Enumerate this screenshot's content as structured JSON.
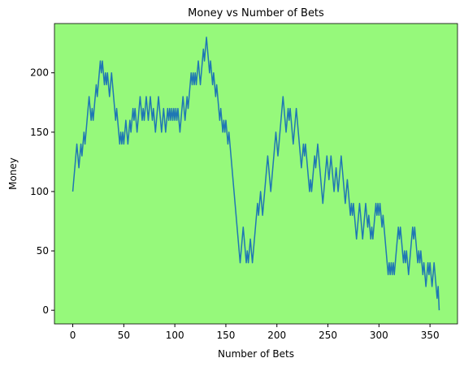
{
  "chart_data": {
    "type": "line",
    "title": "Money vs Number of Bets",
    "xlabel": "Number of Bets",
    "ylabel": "Money",
    "plot_background": "#96f97b",
    "xlim": [
      -17.95,
      376.95
    ],
    "xticks": [
      0,
      50,
      100,
      150,
      200,
      250,
      300,
      350
    ],
    "ylim": [
      -11.5,
      241.5
    ],
    "yticks": [
      0,
      50,
      100,
      150,
      200
    ],
    "x": [
      0,
      1,
      2,
      3,
      4,
      5,
      6,
      7,
      8,
      9,
      10,
      11,
      12,
      13,
      14,
      15,
      16,
      17,
      18,
      19,
      20,
      21,
      22,
      23,
      24,
      25,
      26,
      27,
      28,
      29,
      30,
      31,
      32,
      33,
      34,
      35,
      36,
      37,
      38,
      39,
      40,
      41,
      42,
      43,
      44,
      45,
      46,
      47,
      48,
      49,
      50,
      51,
      52,
      53,
      54,
      55,
      56,
      57,
      58,
      59,
      60,
      61,
      62,
      63,
      64,
      65,
      66,
      67,
      68,
      69,
      70,
      71,
      72,
      73,
      74,
      75,
      76,
      77,
      78,
      79,
      80,
      81,
      82,
      83,
      84,
      85,
      86,
      87,
      88,
      89,
      90,
      91,
      92,
      93,
      94,
      95,
      96,
      97,
      98,
      99,
      100,
      101,
      102,
      103,
      104,
      105,
      106,
      107,
      108,
      109,
      110,
      111,
      112,
      113,
      114,
      115,
      116,
      117,
      118,
      119,
      120,
      121,
      122,
      123,
      124,
      125,
      126,
      127,
      128,
      129,
      130,
      131,
      132,
      133,
      134,
      135,
      136,
      137,
      138,
      139,
      140,
      141,
      142,
      143,
      144,
      145,
      146,
      147,
      148,
      149,
      150,
      151,
      152,
      153,
      154,
      155,
      156,
      157,
      158,
      159,
      160,
      161,
      162,
      163,
      164,
      165,
      166,
      167,
      168,
      169,
      170,
      171,
      172,
      173,
      174,
      175,
      176,
      177,
      178,
      179,
      180,
      181,
      182,
      183,
      184,
      185,
      186,
      187,
      188,
      189,
      190,
      191,
      192,
      193,
      194,
      195,
      196,
      197,
      198,
      199,
      200,
      201,
      202,
      203,
      204,
      205,
      206,
      207,
      208,
      209,
      210,
      211,
      212,
      213,
      214,
      215,
      216,
      217,
      218,
      219,
      220,
      221,
      222,
      223,
      224,
      225,
      226,
      227,
      228,
      229,
      230,
      231,
      232,
      233,
      234,
      235,
      236,
      237,
      238,
      239,
      240,
      241,
      242,
      243,
      244,
      245,
      246,
      247,
      248,
      249,
      250,
      251,
      252,
      253,
      254,
      255,
      256,
      257,
      258,
      259,
      260,
      261,
      262,
      263,
      264,
      265,
      266,
      267,
      268,
      269,
      270,
      271,
      272,
      273,
      274,
      275,
      276,
      277,
      278,
      279,
      280,
      281,
      282,
      283,
      284,
      285,
      286,
      287,
      288,
      289,
      290,
      291,
      292,
      293,
      294,
      295,
      296,
      297,
      298,
      299,
      300,
      301,
      302,
      303,
      304,
      305,
      306,
      307,
      308,
      309,
      310,
      311,
      312,
      313,
      314,
      315,
      316,
      317,
      318,
      319,
      320,
      321,
      322,
      323,
      324,
      325,
      326,
      327,
      328,
      329,
      330,
      331,
      332,
      333,
      334,
      335,
      336,
      337,
      338,
      339,
      340,
      341,
      342,
      343,
      344,
      345,
      346,
      347,
      348,
      349,
      350,
      351,
      352,
      353,
      354,
      355,
      356,
      357,
      358,
      359
    ],
    "series": [
      {
        "color": "#1f77b4",
        "values": [
          100,
          110,
          120,
          130,
          140,
          130,
          120,
          130,
          140,
          130,
          140,
          150,
          140,
          150,
          160,
          170,
          180,
          170,
          160,
          170,
          160,
          170,
          180,
          190,
          180,
          190,
          200,
          210,
          200,
          210,
          200,
          190,
          200,
          190,
          200,
          190,
          180,
          190,
          200,
          190,
          180,
          170,
          160,
          170,
          160,
          150,
          140,
          150,
          140,
          150,
          140,
          150,
          160,
          150,
          140,
          150,
          160,
          150,
          160,
          170,
          160,
          170,
          160,
          150,
          160,
          170,
          180,
          170,
          160,
          170,
          160,
          170,
          180,
          170,
          160,
          170,
          180,
          170,
          160,
          170,
          160,
          150,
          160,
          170,
          180,
          170,
          160,
          150,
          160,
          170,
          160,
          150,
          160,
          170,
          160,
          170,
          160,
          170,
          160,
          170,
          160,
          170,
          160,
          170,
          160,
          150,
          160,
          170,
          180,
          170,
          160,
          170,
          180,
          170,
          180,
          190,
          200,
          190,
          200,
          190,
          200,
          190,
          200,
          210,
          200,
          190,
          200,
          210,
          220,
          210,
          220,
          230,
          220,
          210,
          200,
          210,
          200,
          190,
          200,
          190,
          180,
          190,
          180,
          170,
          160,
          170,
          160,
          150,
          160,
          150,
          160,
          150,
          140,
          150,
          140,
          130,
          120,
          110,
          100,
          90,
          80,
          70,
          60,
          50,
          40,
          50,
          60,
          70,
          60,
          50,
          40,
          50,
          40,
          50,
          60,
          50,
          40,
          50,
          60,
          70,
          80,
          90,
          80,
          90,
          100,
          90,
          80,
          90,
          100,
          110,
          120,
          130,
          120,
          110,
          100,
          110,
          120,
          130,
          140,
          150,
          140,
          130,
          140,
          150,
          160,
          170,
          180,
          170,
          160,
          150,
          160,
          170,
          160,
          170,
          160,
          150,
          140,
          150,
          160,
          170,
          160,
          150,
          140,
          130,
          120,
          130,
          140,
          130,
          140,
          130,
          120,
          110,
          100,
          110,
          100,
          110,
          120,
          130,
          120,
          130,
          140,
          130,
          120,
          110,
          100,
          90,
          100,
          110,
          120,
          130,
          120,
          110,
          120,
          130,
          120,
          110,
          100,
          110,
          120,
          110,
          100,
          110,
          120,
          130,
          120,
          110,
          100,
          90,
          100,
          110,
          100,
          90,
          80,
          90,
          80,
          90,
          80,
          70,
          60,
          70,
          80,
          90,
          80,
          70,
          60,
          70,
          80,
          90,
          80,
          70,
          80,
          70,
          60,
          70,
          60,
          70,
          80,
          90,
          80,
          90,
          80,
          90,
          80,
          70,
          80,
          70,
          60,
          50,
          40,
          30,
          40,
          30,
          40,
          30,
          40,
          30,
          40,
          50,
          60,
          70,
          60,
          70,
          60,
          50,
          40,
          50,
          40,
          50,
          40,
          30,
          40,
          50,
          60,
          70,
          60,
          70,
          60,
          50,
          40,
          50,
          40,
          50,
          40,
          30,
          40,
          30,
          20,
          30,
          40,
          30,
          40,
          30,
          20,
          30,
          40,
          30,
          20,
          10,
          20,
          0
        ]
      }
    ]
  }
}
